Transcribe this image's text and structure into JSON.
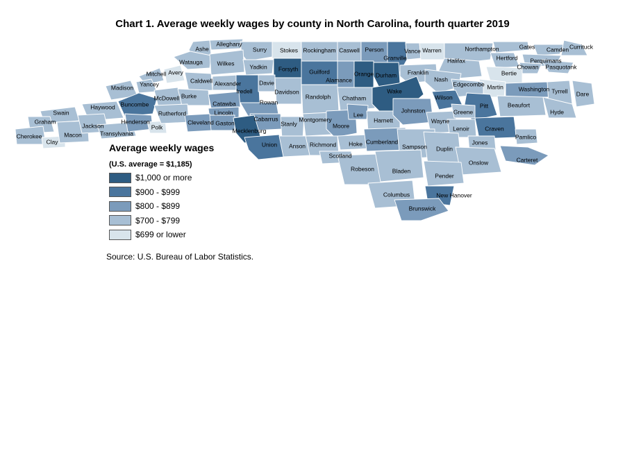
{
  "title": "Chart 1. Average weekly wages by county in North Carolina, fourth quarter 2019",
  "legend": {
    "title": "Average weekly wages",
    "subtitle": "(U.S. average = $1,185)",
    "items": [
      {
        "label": "$1,000 or more",
        "color": "#2e5c82"
      },
      {
        "label": "$900 - $999",
        "color": "#4a759d"
      },
      {
        "label": "$800 - $899",
        "color": "#7b9bbb"
      },
      {
        "label": "$700 - $799",
        "color": "#a8bfd4"
      },
      {
        "label": "$699 or lower",
        "color": "#d8e4ec"
      }
    ]
  },
  "source": "Source: U.S. Bureau of Labor Statistics.",
  "map_data": {
    "counties": [
      {
        "name": "Ashe",
        "tier": 3
      },
      {
        "name": "Alleghany",
        "tier": 3
      },
      {
        "name": "Surry",
        "tier": 3
      },
      {
        "name": "Stokes",
        "tier": 4
      },
      {
        "name": "Rockingham",
        "tier": 3
      },
      {
        "name": "Caswell",
        "tier": 3
      },
      {
        "name": "Person",
        "tier": 2
      },
      {
        "name": "Granville",
        "tier": 1
      },
      {
        "name": "Vance",
        "tier": 3
      },
      {
        "name": "Warren",
        "tier": 4
      },
      {
        "name": "Northampton",
        "tier": 3
      },
      {
        "name": "Gates",
        "tier": 3
      },
      {
        "name": "Camden",
        "tier": 3
      },
      {
        "name": "Currituck",
        "tier": 3
      },
      {
        "name": "Hertford",
        "tier": 3
      },
      {
        "name": "Perquimans",
        "tier": 3
      },
      {
        "name": "Chowan",
        "tier": 3
      },
      {
        "name": "Pasquotank",
        "tier": 3
      },
      {
        "name": "Watauga",
        "tier": 3
      },
      {
        "name": "Wilkes",
        "tier": 3
      },
      {
        "name": "Yadkin",
        "tier": 3
      },
      {
        "name": "Forsyth",
        "tier": 0
      },
      {
        "name": "Guilford",
        "tier": 1
      },
      {
        "name": "Alamance",
        "tier": 2
      },
      {
        "name": "Orange",
        "tier": 0
      },
      {
        "name": "Durham",
        "tier": 0
      },
      {
        "name": "Franklin",
        "tier": 3
      },
      {
        "name": "Halifax",
        "tier": 3
      },
      {
        "name": "Bertie",
        "tier": 4
      },
      {
        "name": "Martin",
        "tier": 4
      },
      {
        "name": "Washington",
        "tier": 2
      },
      {
        "name": "Tyrrell",
        "tier": 3
      },
      {
        "name": "Dare",
        "tier": 3
      },
      {
        "name": "Mitchell",
        "tier": 3
      },
      {
        "name": "Avery",
        "tier": 4
      },
      {
        "name": "Yancey",
        "tier": 3
      },
      {
        "name": "Madison",
        "tier": 3
      },
      {
        "name": "Caldwell",
        "tier": 3
      },
      {
        "name": "Alexander",
        "tier": 3
      },
      {
        "name": "Iredell",
        "tier": 1
      },
      {
        "name": "Davie",
        "tier": 3
      },
      {
        "name": "Davidson",
        "tier": 3
      },
      {
        "name": "Randolph",
        "tier": 3
      },
      {
        "name": "Chatham",
        "tier": 3
      },
      {
        "name": "Wake",
        "tier": 0
      },
      {
        "name": "Nash",
        "tier": 3
      },
      {
        "name": "Edgecombe",
        "tier": 3
      },
      {
        "name": "Wilson",
        "tier": 1
      },
      {
        "name": "Pitt",
        "tier": 1
      },
      {
        "name": "Beaufort",
        "tier": 3
      },
      {
        "name": "Hyde",
        "tier": 3
      },
      {
        "name": "Buncombe",
        "tier": 1
      },
      {
        "name": "McDowell",
        "tier": 3
      },
      {
        "name": "Burke",
        "tier": 3
      },
      {
        "name": "Catawba",
        "tier": 2
      },
      {
        "name": "Lincoln",
        "tier": 2
      },
      {
        "name": "Rowan",
        "tier": 2
      },
      {
        "name": "Cabarrus",
        "tier": 2
      },
      {
        "name": "Stanly",
        "tier": 3
      },
      {
        "name": "Montgomery",
        "tier": 3
      },
      {
        "name": "Moore",
        "tier": 2
      },
      {
        "name": "Lee",
        "tier": 2
      },
      {
        "name": "Harnett",
        "tier": 3
      },
      {
        "name": "Johnston",
        "tier": 2
      },
      {
        "name": "Wayne",
        "tier": 3
      },
      {
        "name": "Greene",
        "tier": 3
      },
      {
        "name": "Lenoir",
        "tier": 3
      },
      {
        "name": "Craven",
        "tier": 1
      },
      {
        "name": "Pamlico",
        "tier": 3
      },
      {
        "name": "Jones",
        "tier": 3
      },
      {
        "name": "Carteret",
        "tier": 2
      },
      {
        "name": "Haywood",
        "tier": 3
      },
      {
        "name": "Swain",
        "tier": 3
      },
      {
        "name": "Graham",
        "tier": 3
      },
      {
        "name": "Cherokee",
        "tier": 3
      },
      {
        "name": "Clay",
        "tier": 4
      },
      {
        "name": "Macon",
        "tier": 3
      },
      {
        "name": "Jackson",
        "tier": 3
      },
      {
        "name": "Transylvania",
        "tier": 3
      },
      {
        "name": "Henderson",
        "tier": 2
      },
      {
        "name": "Polk",
        "tier": 4
      },
      {
        "name": "Rutherford",
        "tier": 3
      },
      {
        "name": "Cleveland",
        "tier": 2
      },
      {
        "name": "Gaston",
        "tier": 2
      },
      {
        "name": "Mecklenburg",
        "tier": 0
      },
      {
        "name": "Union",
        "tier": 1
      },
      {
        "name": "Anson",
        "tier": 3
      },
      {
        "name": "Richmond",
        "tier": 3
      },
      {
        "name": "Scotland",
        "tier": 3
      },
      {
        "name": "Hoke",
        "tier": 3
      },
      {
        "name": "Cumberland",
        "tier": 2
      },
      {
        "name": "Sampson",
        "tier": 3
      },
      {
        "name": "Duplin",
        "tier": 3
      },
      {
        "name": "Onslow",
        "tier": 3
      },
      {
        "name": "Robeson",
        "tier": 3
      },
      {
        "name": "Bladen",
        "tier": 3
      },
      {
        "name": "Pender",
        "tier": 3
      },
      {
        "name": "Columbus",
        "tier": 3
      },
      {
        "name": "New Hanover",
        "tier": 1
      },
      {
        "name": "Brunswick",
        "tier": 2
      }
    ]
  }
}
